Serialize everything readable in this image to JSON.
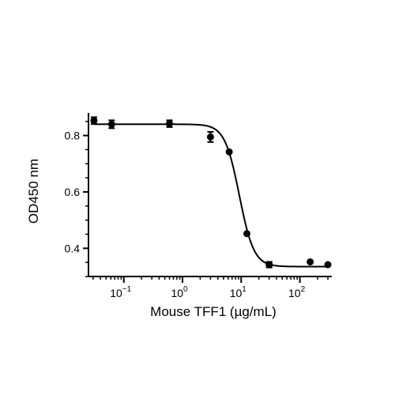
{
  "chart_data": {
    "type": "scatter",
    "xlabel": "Mouse TFF1 (µg/mL)",
    "ylabel": "OD450 nm",
    "x_scale": "log",
    "xlim": [
      0.025,
      350
    ],
    "ylim": [
      0.3,
      0.88
    ],
    "x_ticks": [
      {
        "value": 0.1,
        "base": "10",
        "exp": "−1"
      },
      {
        "value": 1,
        "base": "10",
        "exp": "0"
      },
      {
        "value": 10,
        "base": "10",
        "exp": "1"
      },
      {
        "value": 100,
        "base": "10",
        "exp": "2"
      }
    ],
    "y_ticks": [
      {
        "value": 0.4,
        "label": "0.4"
      },
      {
        "value": 0.6,
        "label": "0.6"
      },
      {
        "value": 0.8,
        "label": "0.8"
      }
    ],
    "grid": false,
    "legend": "none",
    "points": [
      {
        "x": 0.031,
        "y": 0.853,
        "err": 0.012
      },
      {
        "x": 0.062,
        "y": 0.84,
        "err": 0.014
      },
      {
        "x": 0.6,
        "y": 0.842,
        "err": 0.012
      },
      {
        "x": 3.0,
        "y": 0.795,
        "err": 0.018
      },
      {
        "x": 6.25,
        "y": 0.742,
        "err": 0.0
      },
      {
        "x": 12.5,
        "y": 0.452,
        "err": 0.0
      },
      {
        "x": 30,
        "y": 0.342,
        "err": 0.01
      },
      {
        "x": 150,
        "y": 0.352,
        "err": 0.0
      },
      {
        "x": 300,
        "y": 0.342,
        "err": 0.0
      }
    ],
    "fit": {
      "type": "4PL",
      "top": 0.84,
      "bottom": 0.335,
      "ec50": 9.3,
      "hill": 3.5
    },
    "colors": {
      "marker": "#000000",
      "line": "#000000",
      "axis": "#000000"
    }
  }
}
